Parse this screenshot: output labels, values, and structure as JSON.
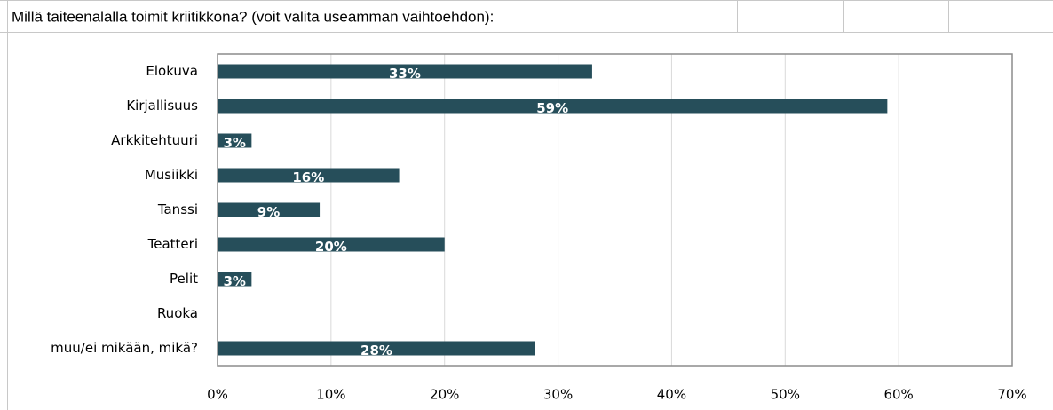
{
  "chart_data": {
    "type": "bar",
    "orientation": "horizontal",
    "title": "Millä taiteenalalla toimit kriitikkona? (voit valita useamman vaihtoehdon):",
    "categories": [
      "Elokuva",
      "Kirjallisuus",
      "Arkkitehtuuri",
      "Musiikki",
      "Tanssi",
      "Teatteri",
      "Pelit",
      "Ruoka",
      "muu/ei mikään, mikä?"
    ],
    "values": [
      33,
      59,
      3,
      16,
      9,
      20,
      3,
      null,
      28
    ],
    "value_labels": [
      "33%",
      "59%",
      "3%",
      "16%",
      "9%",
      "20%",
      "3%",
      null,
      "28%"
    ],
    "color": "#264e5a",
    "xlim": [
      0,
      70
    ],
    "xticks": [
      {
        "value": 0,
        "label": "0%"
      },
      {
        "value": 10,
        "label": "10%"
      },
      {
        "value": 20,
        "label": "20%"
      },
      {
        "value": 30,
        "label": "30%"
      },
      {
        "value": 40,
        "label": "40%"
      },
      {
        "value": 50,
        "label": "50%"
      },
      {
        "value": 60,
        "label": "60%"
      },
      {
        "value": 70,
        "label": "70%"
      }
    ],
    "grid": true
  }
}
